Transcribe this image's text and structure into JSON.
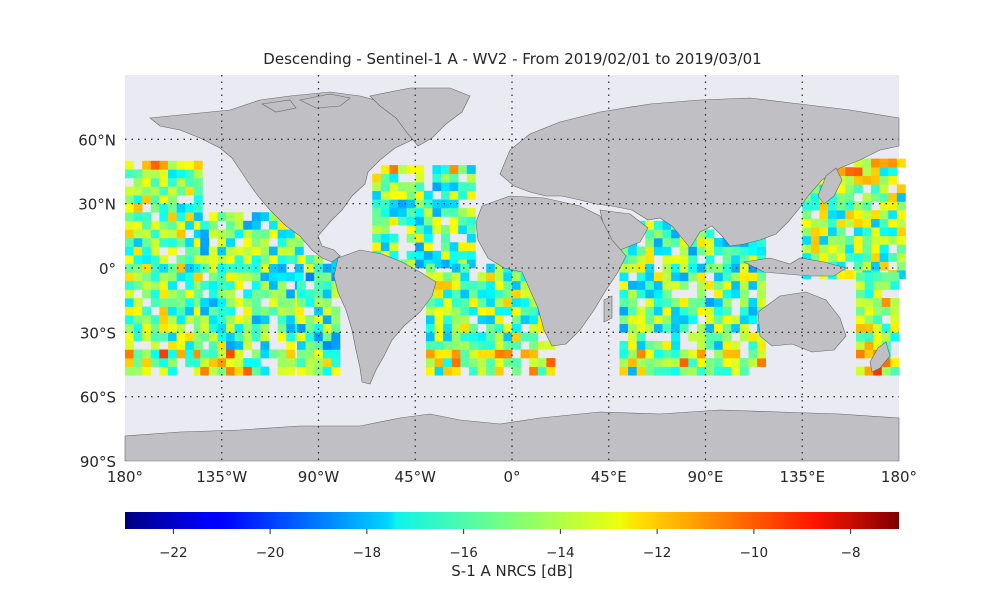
{
  "title": "Descending - Sentinel-1 A - WV2 - From 2019/02/01 to 2019/03/01",
  "lat_labels": [
    "60°N",
    "30°N",
    "0°",
    "30°S",
    "60°S",
    "90°S"
  ],
  "lon_labels": [
    "180°",
    "135°W",
    "90°W",
    "45°W",
    "0°",
    "45°E",
    "90°E",
    "135°E",
    "180°"
  ],
  "colorbar": {
    "label": "S-1 A NRCS [dB]",
    "min": -23,
    "max": -7,
    "ticks": [
      "−22",
      "−20",
      "−18",
      "−16",
      "−14",
      "−12",
      "−10",
      "−8"
    ],
    "tick_values": [
      -22,
      -20,
      -18,
      -16,
      -14,
      -12,
      -10,
      -8
    ],
    "colormap": "jet"
  },
  "colors": {
    "ocean": "#eaeaf2",
    "land": "#c0c0c4",
    "coast": "#555555",
    "grid": "#333333"
  },
  "chart_data": {
    "type": "heatmap",
    "title": "Descending - Sentinel-1 A - WV2 - From 2019/02/01 to 2019/03/01",
    "xlim": [
      -180,
      180
    ],
    "ylim": [
      -90,
      90
    ],
    "value_range": [
      -23,
      -7
    ],
    "value_label": "S-1 A NRCS [dB]",
    "regions": [
      {
        "lon": [
          -180,
          -145
        ],
        "lat": [
          -50,
          50
        ],
        "mean": -15
      },
      {
        "lon": [
          -145,
          -100
        ],
        "lat": [
          -50,
          25
        ],
        "mean": -15.5
      },
      {
        "lon": [
          -100,
          -80
        ],
        "lat": [
          -50,
          5
        ],
        "mean": -16
      },
      {
        "lon": [
          -65,
          -20
        ],
        "lat": [
          0,
          48
        ],
        "mean": -15.5
      },
      {
        "lon": [
          -40,
          20
        ],
        "lat": [
          -50,
          0
        ],
        "mean": -15
      },
      {
        "lon": [
          50,
          115
        ],
        "lat": [
          -50,
          20
        ],
        "mean": -15.5
      },
      {
        "lon": [
          135,
          180
        ],
        "lat": [
          -5,
          50
        ],
        "mean": -15
      },
      {
        "lon": [
          160,
          180
        ],
        "lat": [
          -50,
          -5
        ],
        "mean": -14
      }
    ]
  }
}
